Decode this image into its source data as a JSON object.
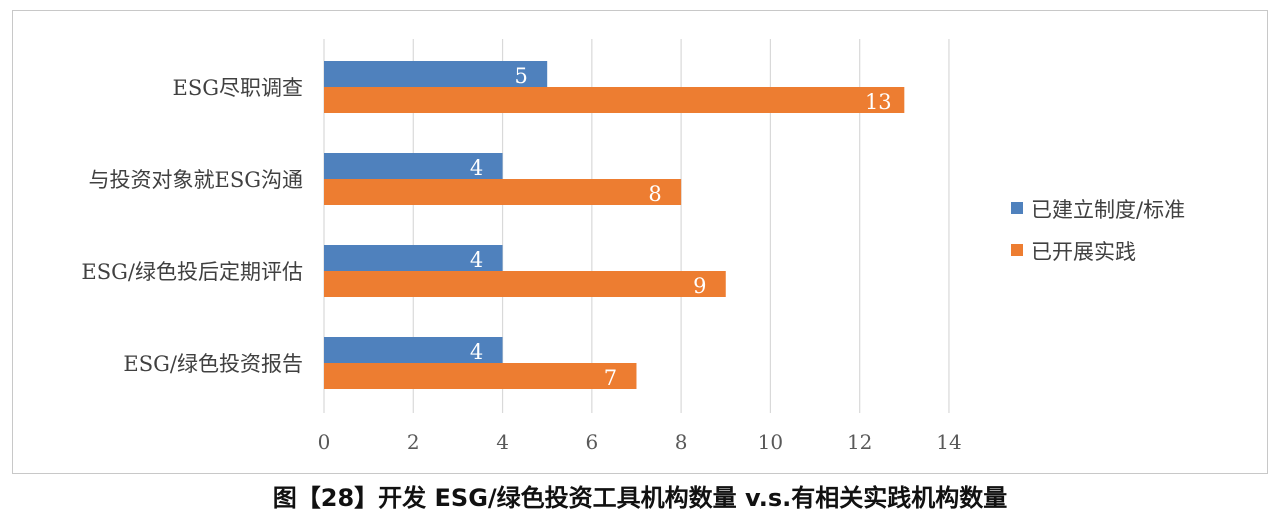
{
  "caption": "图【28】开发 ESG/绿色投资工具机构数量 v.s.有相关实践机构数量",
  "chart_data": {
    "type": "bar",
    "orientation": "horizontal",
    "categories": [
      "ESG尽职调查",
      "与投资对象就ESG沟通",
      "ESG/绿色投后定期评估",
      "ESG/绿色投资报告"
    ],
    "series": [
      {
        "name": "已建立制度/标准",
        "values": [
          5,
          4,
          4,
          4
        ],
        "color": "#4f81bd"
      },
      {
        "name": "已开展实践",
        "values": [
          13,
          8,
          9,
          7
        ],
        "color": "#ed7d31"
      }
    ],
    "xlim": [
      0,
      14
    ],
    "x_ticks": [
      "0",
      "2",
      "4",
      "6",
      "8",
      "10",
      "12",
      "14"
    ],
    "gridlines": true,
    "data_labels": true,
    "legend_position": "right",
    "title": "",
    "xlabel": "",
    "ylabel": ""
  }
}
